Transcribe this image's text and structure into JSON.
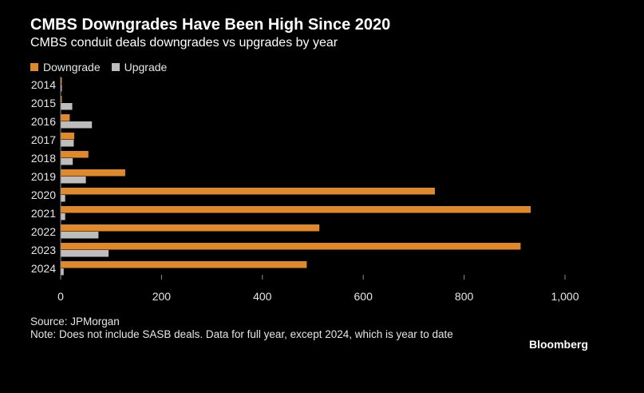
{
  "title": "CMBS Downgrades Have Been High Since 2020",
  "subtitle": "CMBS conduit deals downgrades vs upgrades by year",
  "legend": {
    "downgrade_label": "Downgrade",
    "upgrade_label": "Upgrade"
  },
  "colors": {
    "downgrade": "#e0892b",
    "upgrade": "#bdbdbd",
    "axis": "#8c8c8c",
    "text": "#e6e6e6"
  },
  "chart_data": {
    "type": "bar",
    "orientation": "horizontal",
    "categories": [
      "2014",
      "2015",
      "2016",
      "2017",
      "2018",
      "2019",
      "2020",
      "2021",
      "2022",
      "2023",
      "2024"
    ],
    "series": [
      {
        "name": "Downgrade",
        "values": [
          2,
          2,
          18,
          27,
          55,
          128,
          742,
          932,
          513,
          912,
          488
        ]
      },
      {
        "name": "Upgrade",
        "values": [
          2,
          23,
          62,
          26,
          24,
          50,
          9,
          9,
          75,
          95,
          6
        ]
      }
    ],
    "xlim": [
      0,
      1000
    ],
    "xticks": [
      0,
      200,
      400,
      600,
      800,
      1000
    ],
    "xtick_labels": [
      "0",
      "200",
      "400",
      "600",
      "800",
      "1,000"
    ],
    "grid": false,
    "legend_position": "top-left"
  },
  "source": "Source: JPMorgan",
  "note": "Note: Does not include SASB deals. Data for full year, except 2024, which is year to date",
  "brand": "Bloomberg"
}
